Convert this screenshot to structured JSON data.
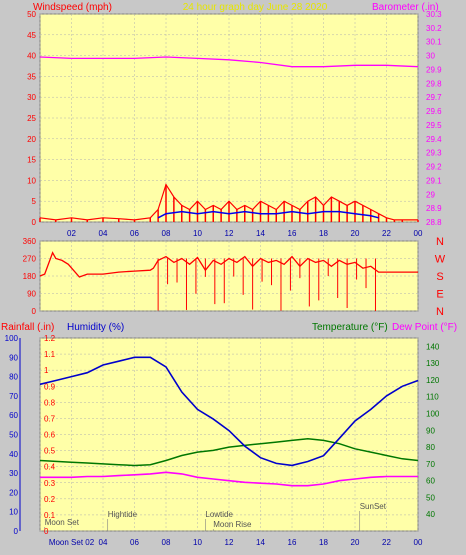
{
  "title": "24 hour graph day   June 28 2020",
  "colors": {
    "bg": "#c8c8c8",
    "plot": "#ffffa8",
    "grid": "#b0b0b0",
    "wind": "#ff0000",
    "gust": "#0000ee",
    "green": "#007700",
    "baro": "#ff00ff",
    "humidity": "#0000cc",
    "dewpoint": "#ff00ff",
    "temperature": "#007700",
    "label_yellow": "#e6e600",
    "rain": "#ff0000"
  },
  "x_ticks": [
    "02",
    "04",
    "06",
    "08",
    "10",
    "12",
    "14",
    "16",
    "18",
    "20",
    "22",
    "00"
  ],
  "chart_data": [
    {
      "type": "line",
      "name": "wind",
      "ylabel_left": "Windspeed (mph)",
      "ylabel_right": "Barometer (.in)",
      "x_range": [
        0,
        24
      ],
      "y_left_range": [
        0,
        50
      ],
      "y_left_ticks": [
        "0",
        "5",
        "10",
        "15",
        "20",
        "25",
        "30",
        "35",
        "40",
        "45",
        "50"
      ],
      "y_right_range": [
        28.8,
        30.3
      ],
      "y_right_ticks": [
        "28.8",
        "28.9",
        "29",
        "29.1",
        "29.2",
        "29.3",
        "29.4",
        "29.5",
        "29.6",
        "29.7",
        "29.8",
        "29.9",
        "30",
        "30.1",
        "30.2",
        "30.3"
      ],
      "series": [
        {
          "key": "windspeed",
          "x": [
            0,
            1,
            2,
            3,
            4,
            5,
            6,
            7,
            7.5,
            8,
            8.5,
            9,
            9.5,
            10,
            10.5,
            11,
            11.5,
            12,
            12.5,
            13,
            13.5,
            14,
            14.5,
            15,
            15.5,
            16,
            16.5,
            17,
            17.5,
            18,
            18.5,
            19,
            19.5,
            20,
            20.5,
            21,
            21.5,
            22,
            22.5,
            23,
            24
          ],
          "y": [
            1,
            0.5,
            1,
            0.5,
            1,
            0.8,
            0.5,
            1,
            3,
            9,
            6,
            4,
            3,
            5,
            3,
            4,
            3,
            5,
            3,
            4,
            3,
            5,
            4,
            3,
            5,
            4,
            3,
            5,
            6,
            4,
            6,
            5,
            4,
            5,
            4,
            3,
            2,
            1,
            0.5,
            0.5,
            0.5
          ]
        },
        {
          "key": "gust",
          "x": [
            7.5,
            8,
            9,
            10,
            11,
            12,
            13,
            14,
            15,
            16,
            17,
            18,
            19,
            20,
            21,
            21.5
          ],
          "y": [
            1,
            2,
            2.5,
            2,
            2.5,
            2,
            2.5,
            2,
            2,
            2.5,
            2,
            2.5,
            2.5,
            2,
            1.5,
            1
          ]
        },
        {
          "key": "barometer",
          "x": [
            0,
            2,
            4,
            6,
            8,
            10,
            12,
            14,
            16,
            18,
            20,
            22,
            24
          ],
          "y": [
            29.99,
            29.98,
            29.98,
            29.98,
            29.99,
            29.98,
            29.97,
            29.95,
            29.92,
            29.92,
            29.93,
            29.93,
            29.92
          ]
        }
      ]
    },
    {
      "type": "line",
      "name": "wind_direction",
      "ylabel_right": [
        "N",
        "W",
        "S",
        "E",
        "N"
      ],
      "y_range": [
        0,
        360
      ],
      "y_ticks": [
        "0",
        "90",
        "180",
        "270",
        "360"
      ],
      "series": [
        {
          "key": "direction",
          "x": [
            0,
            0.3,
            0.8,
            1,
            1.4,
            1.8,
            2.5,
            3,
            4,
            5,
            6,
            7,
            7.2,
            7.5,
            8,
            8.5,
            9,
            9.5,
            10,
            10.5,
            11,
            11.5,
            12,
            12.5,
            13,
            13.5,
            14,
            14.5,
            15,
            15.5,
            16,
            16.5,
            17,
            17.5,
            18,
            18.5,
            19,
            19.5,
            20,
            20.5,
            21,
            21.5,
            22,
            23,
            24
          ],
          "y": [
            180,
            190,
            300,
            270,
            260,
            240,
            175,
            190,
            190,
            200,
            205,
            210,
            220,
            260,
            280,
            250,
            270,
            240,
            275,
            210,
            260,
            240,
            270,
            250,
            280,
            230,
            270,
            250,
            260,
            240,
            280,
            230,
            270,
            250,
            260,
            230,
            260,
            240,
            250,
            220,
            230,
            200,
            200,
            200,
            200
          ]
        }
      ]
    },
    {
      "type": "line",
      "name": "temp_hum",
      "ylabel_left": "Rainfall (.in)",
      "ylabel_humidity": "Humidity (%)",
      "ylabel_temp": "Temperature (°F)",
      "ylabel_dew": "Dew Point (°F)",
      "rain_range": [
        0,
        1.2
      ],
      "rain_ticks": [
        "0",
        "0.1",
        "0.2",
        "0.3",
        "0.4",
        "0.5",
        "0.6",
        "0.7",
        "0.8",
        "0.9",
        "1",
        "1.1",
        "1.2"
      ],
      "hum_range": [
        0,
        100
      ],
      "hum_ticks": [
        "0",
        "10",
        "20",
        "30",
        "40",
        "50",
        "60",
        "70",
        "80",
        "90",
        "100"
      ],
      "temp_range": [
        30,
        145
      ],
      "temp_ticks": [
        "40",
        "50",
        "60",
        "70",
        "80",
        "90",
        "100",
        "110",
        "120",
        "130",
        "140"
      ],
      "series": [
        {
          "key": "humidity",
          "x": [
            0,
            1,
            2,
            3,
            4,
            5,
            6,
            7,
            8,
            9,
            10,
            11,
            12,
            13,
            14,
            15,
            16,
            17,
            18,
            19,
            20,
            21,
            22,
            23,
            24
          ],
          "y": [
            76,
            78,
            80,
            82,
            86,
            88,
            90,
            90,
            85,
            72,
            63,
            58,
            52,
            44,
            38,
            35,
            34,
            36,
            39,
            48,
            57,
            63,
            70,
            75,
            78
          ]
        },
        {
          "key": "temperature",
          "x": [
            0,
            1,
            2,
            3,
            4,
            5,
            6,
            7,
            8,
            9,
            10,
            11,
            12,
            13,
            14,
            15,
            16,
            17,
            18,
            19,
            20,
            21,
            22,
            23,
            24
          ],
          "y": [
            72,
            71.5,
            71,
            70.5,
            70,
            69.5,
            69,
            69.5,
            72,
            75,
            77,
            78,
            80,
            81,
            82,
            83,
            84,
            85,
            84,
            82,
            79,
            77,
            75,
            73,
            72
          ]
        },
        {
          "key": "dewpoint",
          "x": [
            0,
            1,
            2,
            3,
            4,
            5,
            6,
            7,
            8,
            9,
            10,
            11,
            12,
            13,
            14,
            15,
            16,
            17,
            18,
            19,
            20,
            21,
            22,
            23,
            24
          ],
          "y": [
            62,
            62,
            62,
            62.5,
            62.5,
            63,
            63.5,
            64,
            65,
            64,
            62,
            61,
            60,
            59,
            58.5,
            58,
            57,
            57,
            58,
            60,
            61,
            62,
            62.5,
            62.5,
            62.5
          ]
        }
      ],
      "annotations": [
        {
          "text": "Moon Set",
          "x": 0.3,
          "level": "bottom"
        },
        {
          "text": "Hightide",
          "x": 4.3,
          "level": "mid"
        },
        {
          "text": "Lowtide",
          "x": 10.5,
          "level": "mid"
        },
        {
          "text": "Moon Rise",
          "x": 11,
          "level": "low"
        },
        {
          "text": "SunSet",
          "x": 20.3,
          "level": "top"
        }
      ],
      "x_ticks_bottom": [
        "Moon Set 02",
        "04",
        "06",
        "08",
        "10",
        "12",
        "14",
        "16",
        "18",
        "20",
        "22",
        "00"
      ]
    }
  ]
}
